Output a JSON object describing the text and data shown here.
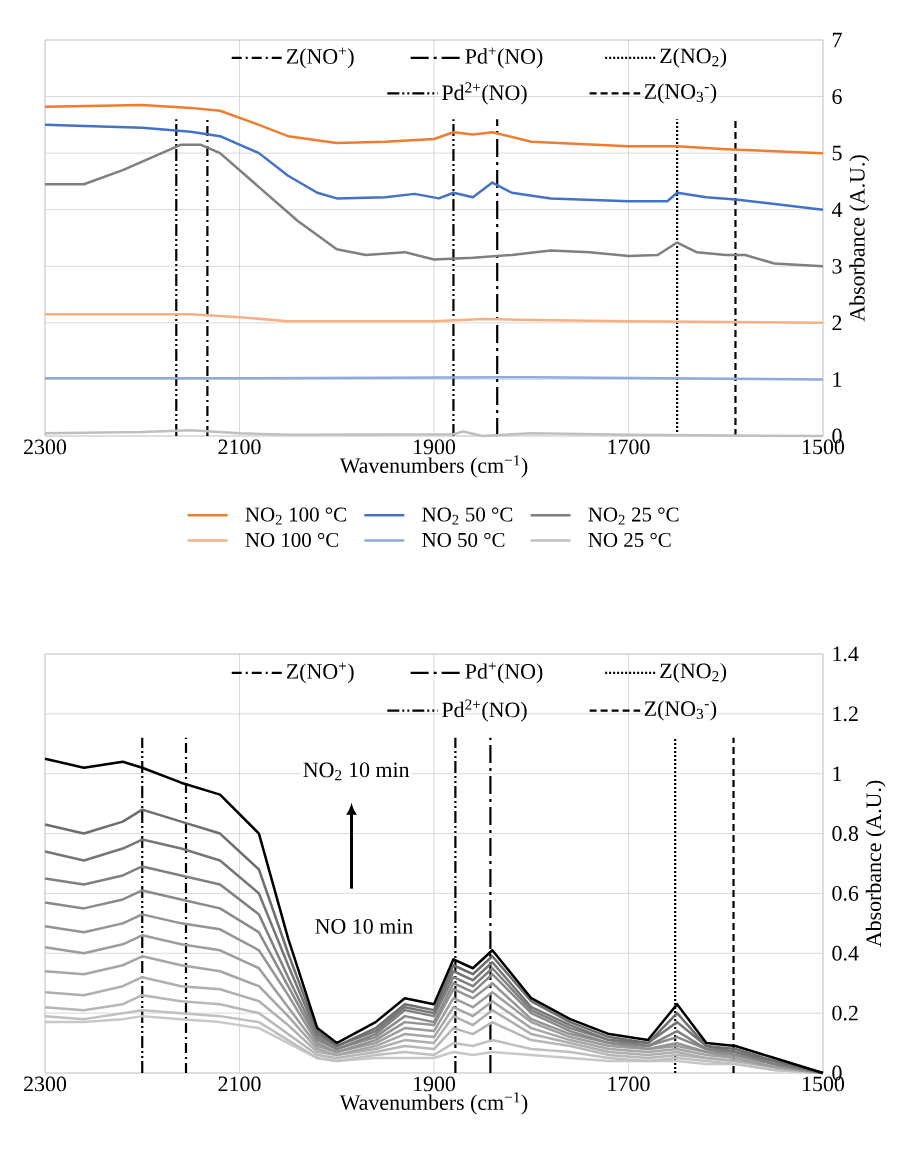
{
  "chart_data": [
    {
      "type": "line",
      "xlabel": "Wavenumbers (cm$^{−1}$)",
      "ylabel": "Absorbance (A.U.)",
      "xlim": [
        2300,
        1500
      ],
      "ylim": [
        0,
        7
      ],
      "xticks": [
        2300,
        2100,
        1900,
        1700,
        1500
      ],
      "yticks": [
        0,
        1,
        2,
        3,
        4,
        5,
        6,
        7
      ],
      "grid": true,
      "legend": "bottom",
      "series": [
        {
          "name": "NO$_{2}$ 100 °C",
          "color": "#ed7d31",
          "x": [
            2300,
            2200,
            2150,
            2120,
            2080,
            2050,
            2000,
            1950,
            1900,
            1880,
            1860,
            1840,
            1800,
            1700,
            1650,
            1600,
            1500
          ],
          "values": [
            5.82,
            5.85,
            5.8,
            5.75,
            5.5,
            5.3,
            5.18,
            5.2,
            5.25,
            5.37,
            5.33,
            5.37,
            5.2,
            5.12,
            5.12,
            5.07,
            5.0
          ]
        },
        {
          "name": "NO$_{2}$ 50 °C",
          "color": "#4472c4",
          "x": [
            2300,
            2200,
            2150,
            2120,
            2080,
            2050,
            2020,
            2000,
            1950,
            1920,
            1895,
            1880,
            1860,
            1840,
            1820,
            1780,
            1700,
            1660,
            1650,
            1620,
            1590,
            1500
          ],
          "values": [
            5.5,
            5.45,
            5.38,
            5.3,
            5.0,
            4.6,
            4.3,
            4.2,
            4.22,
            4.28,
            4.2,
            4.3,
            4.22,
            4.48,
            4.3,
            4.2,
            4.15,
            4.15,
            4.3,
            4.22,
            4.18,
            4.0
          ]
        },
        {
          "name": "NO$_{2}$ 25 °C",
          "color": "#7f7f7f",
          "x": [
            2300,
            2260,
            2220,
            2180,
            2160,
            2140,
            2120,
            2080,
            2040,
            2000,
            1970,
            1930,
            1900,
            1860,
            1820,
            1780,
            1740,
            1700,
            1670,
            1650,
            1630,
            1600,
            1580,
            1550,
            1500
          ],
          "values": [
            4.45,
            4.45,
            4.7,
            5.0,
            5.15,
            5.15,
            5.0,
            4.4,
            3.8,
            3.3,
            3.2,
            3.25,
            3.12,
            3.15,
            3.2,
            3.28,
            3.25,
            3.18,
            3.2,
            3.42,
            3.25,
            3.2,
            3.2,
            3.05,
            3.0
          ]
        },
        {
          "name": "NO 100 °C",
          "color": "#f4b183",
          "x": [
            2300,
            2150,
            2100,
            2050,
            1900,
            1850,
            1800,
            1700,
            1500
          ],
          "values": [
            2.15,
            2.15,
            2.1,
            2.03,
            2.03,
            2.07,
            2.05,
            2.03,
            2.0
          ]
        },
        {
          "name": "NO 50 °C",
          "color": "#8faadc",
          "x": [
            2300,
            2100,
            1800,
            1500
          ],
          "values": [
            1.02,
            1.02,
            1.04,
            1.0
          ]
        },
        {
          "name": "NO 25 °C",
          "color": "#bfbfbf",
          "x": [
            2300,
            2200,
            2150,
            2100,
            2050,
            1880,
            1870,
            1850,
            1800,
            1700,
            1500
          ],
          "values": [
            0.05,
            0.07,
            0.1,
            0.05,
            0.02,
            0.03,
            0.08,
            0.0,
            0.05,
            0.02,
            0.0
          ]
        }
      ],
      "ref_lines": [
        {
          "axis": "x",
          "value": 2133,
          "label": "Z(NO$^{+}$)",
          "line_style": "dashdot"
        },
        {
          "axis": "x",
          "value": 1835,
          "label": "Pd$^{+}$(NO)",
          "line_style": "longdashdot"
        },
        {
          "axis": "x",
          "value": 1650,
          "label": "Z(NO$_{2}$)",
          "line_style": "dotted"
        },
        {
          "axis": "x",
          "value": 2165,
          "label": "Pd$^{2+}$(NO)",
          "line_style": "dashdotdot"
        },
        {
          "axis": "x",
          "value": 1590,
          "label": "Z(NO$_{3}$$^{-}$)",
          "line_style": "dashed"
        },
        {
          "axis": "x",
          "value": 1880,
          "line_style": "dashdotdot"
        }
      ]
    },
    {
      "type": "line",
      "xlabel": "Wavenumbers (cm$^{−1}$)",
      "ylabel": "Absorbance (A.U.)",
      "xlim": [
        2300,
        1500
      ],
      "ylim": [
        0,
        1.4
      ],
      "xticks": [
        2300,
        2100,
        1900,
        1700,
        1500
      ],
      "yticks": [
        0,
        0.2,
        0.4,
        0.6,
        0.8,
        1,
        1.2,
        1.4
      ],
      "grid": true,
      "legend": "top",
      "x": [
        2300,
        2260,
        2220,
        2200,
        2160,
        2120,
        2080,
        2050,
        2020,
        2000,
        1960,
        1930,
        1900,
        1880,
        1860,
        1840,
        1800,
        1760,
        1720,
        1680,
        1650,
        1620,
        1590,
        1550,
        1500
      ],
      "series": [
        {
          "color": "#c8c8c8",
          "values": [
            0.17,
            0.17,
            0.18,
            0.19,
            0.18,
            0.17,
            0.15,
            0.1,
            0.05,
            0.04,
            0.05,
            0.05,
            0.05,
            0.07,
            0.06,
            0.07,
            0.06,
            0.05,
            0.04,
            0.04,
            0.04,
            0.03,
            0.03,
            0.01,
            0.0
          ]
        },
        {
          "color": "#c0c0c0",
          "values": [
            0.19,
            0.18,
            0.2,
            0.21,
            0.2,
            0.19,
            0.17,
            0.11,
            0.05,
            0.04,
            0.06,
            0.07,
            0.06,
            0.1,
            0.09,
            0.11,
            0.08,
            0.07,
            0.05,
            0.04,
            0.05,
            0.04,
            0.03,
            0.01,
            0.0
          ]
        },
        {
          "color": "#b7b7b7",
          "values": [
            0.22,
            0.21,
            0.23,
            0.26,
            0.24,
            0.23,
            0.2,
            0.13,
            0.06,
            0.05,
            0.07,
            0.09,
            0.08,
            0.15,
            0.13,
            0.17,
            0.11,
            0.09,
            0.06,
            0.05,
            0.06,
            0.05,
            0.04,
            0.02,
            0.0
          ]
        },
        {
          "color": "#afafaf",
          "values": [
            0.27,
            0.26,
            0.29,
            0.32,
            0.29,
            0.28,
            0.24,
            0.16,
            0.07,
            0.06,
            0.08,
            0.11,
            0.1,
            0.19,
            0.16,
            0.21,
            0.13,
            0.1,
            0.07,
            0.06,
            0.07,
            0.05,
            0.04,
            0.02,
            0.0
          ]
        },
        {
          "color": "#a6a6a6",
          "values": [
            0.34,
            0.33,
            0.36,
            0.39,
            0.36,
            0.34,
            0.29,
            0.19,
            0.08,
            0.06,
            0.09,
            0.13,
            0.12,
            0.22,
            0.19,
            0.24,
            0.15,
            0.11,
            0.08,
            0.07,
            0.08,
            0.06,
            0.05,
            0.02,
            0.0
          ]
        },
        {
          "color": "#9d9d9d",
          "values": [
            0.42,
            0.4,
            0.43,
            0.46,
            0.43,
            0.41,
            0.35,
            0.22,
            0.09,
            0.07,
            0.1,
            0.15,
            0.14,
            0.25,
            0.22,
            0.27,
            0.17,
            0.12,
            0.09,
            0.08,
            0.09,
            0.07,
            0.05,
            0.02,
            0.0
          ]
        },
        {
          "color": "#949494",
          "values": [
            0.49,
            0.47,
            0.5,
            0.53,
            0.5,
            0.48,
            0.41,
            0.26,
            0.1,
            0.07,
            0.11,
            0.17,
            0.16,
            0.28,
            0.25,
            0.3,
            0.18,
            0.13,
            0.1,
            0.08,
            0.1,
            0.07,
            0.06,
            0.03,
            0.0
          ]
        },
        {
          "color": "#8a8a8a",
          "values": [
            0.57,
            0.55,
            0.58,
            0.61,
            0.58,
            0.55,
            0.47,
            0.29,
            0.11,
            0.08,
            0.12,
            0.19,
            0.17,
            0.3,
            0.27,
            0.33,
            0.2,
            0.14,
            0.1,
            0.09,
            0.12,
            0.08,
            0.06,
            0.03,
            0.0
          ]
        },
        {
          "color": "#808080",
          "values": [
            0.65,
            0.63,
            0.66,
            0.69,
            0.66,
            0.63,
            0.53,
            0.32,
            0.12,
            0.08,
            0.13,
            0.21,
            0.19,
            0.32,
            0.29,
            0.35,
            0.21,
            0.15,
            0.11,
            0.09,
            0.14,
            0.08,
            0.07,
            0.03,
            0.0
          ]
        },
        {
          "color": "#767676",
          "values": [
            0.74,
            0.71,
            0.75,
            0.78,
            0.75,
            0.71,
            0.6,
            0.36,
            0.13,
            0.09,
            0.14,
            0.22,
            0.2,
            0.34,
            0.31,
            0.37,
            0.22,
            0.16,
            0.11,
            0.1,
            0.17,
            0.09,
            0.07,
            0.04,
            0.0
          ]
        },
        {
          "color": "#6e6e6e",
          "values": [
            0.83,
            0.8,
            0.84,
            0.88,
            0.84,
            0.8,
            0.68,
            0.4,
            0.14,
            0.09,
            0.15,
            0.23,
            0.21,
            0.36,
            0.33,
            0.39,
            0.24,
            0.17,
            0.12,
            0.1,
            0.2,
            0.09,
            0.08,
            0.04,
            0.0
          ]
        },
        {
          "color": "#000000",
          "values": [
            1.05,
            1.02,
            1.04,
            1.02,
            0.97,
            0.93,
            0.8,
            0.45,
            0.15,
            0.1,
            0.17,
            0.25,
            0.23,
            0.38,
            0.35,
            0.41,
            0.25,
            0.18,
            0.13,
            0.11,
            0.23,
            0.1,
            0.09,
            0.05,
            0.0
          ]
        }
      ],
      "ref_lines": [
        {
          "axis": "x",
          "value": 2155,
          "label": "Z(NO$^{+}$)",
          "line_style": "dashdot"
        },
        {
          "axis": "x",
          "value": 1842,
          "label": "Pd$^{+}$(NO)",
          "line_style": "longdashdot"
        },
        {
          "axis": "x",
          "value": 1652,
          "label": "Z(NO$_{2}$)",
          "line_style": "dotted"
        },
        {
          "axis": "x",
          "value": 2200,
          "label": "Pd$^{2+}$(NO)",
          "line_style": "dashdotdot"
        },
        {
          "axis": "x",
          "value": 1592,
          "label": "Z(NO$_{3}$$^{-}$)",
          "line_style": "dashed"
        },
        {
          "axis": "x",
          "value": 1878,
          "line_style": "dashdotdot"
        }
      ],
      "annotations": [
        "NO$_{2}$ 10 min",
        "NO 10 min"
      ]
    }
  ]
}
